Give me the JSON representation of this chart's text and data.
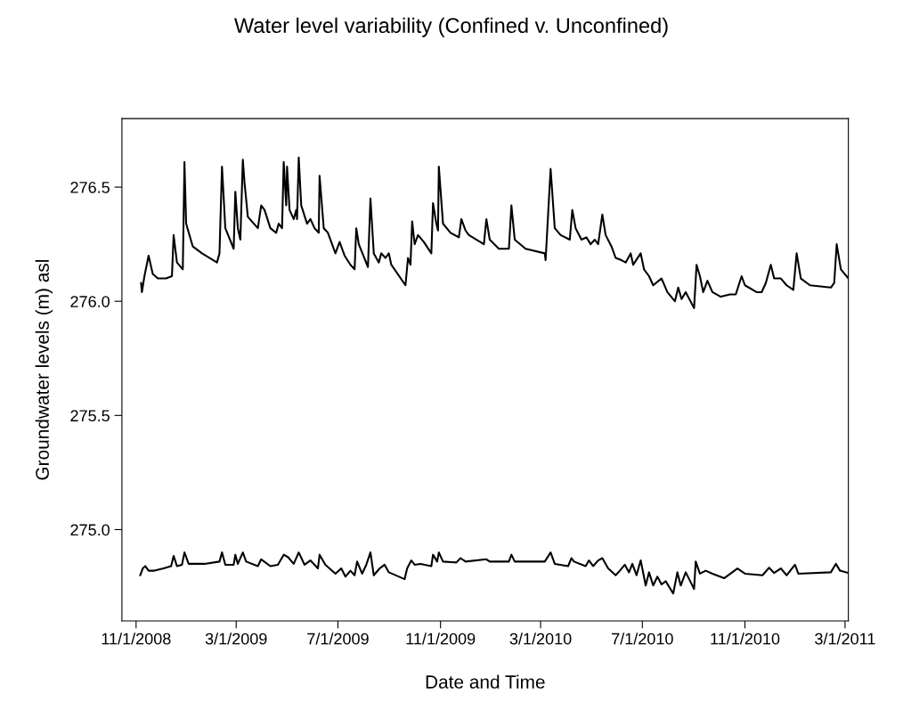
{
  "chart_data": {
    "type": "line",
    "title": "Water level variability (Confined v. Unconfined)",
    "xlabel": "Date and Time",
    "ylabel": "Groundwater levels (m) asl",
    "xlim": [
      "2008-10-15",
      "2011-03-05"
    ],
    "ylim": [
      274.6,
      276.8
    ],
    "xticks": [
      {
        "value": "2008-11-01",
        "label": "11/1/2008"
      },
      {
        "value": "2009-03-01",
        "label": "3/1/2009"
      },
      {
        "value": "2009-07-01",
        "label": "7/1/2009"
      },
      {
        "value": "2009-11-01",
        "label": "11/1/2009"
      },
      {
        "value": "2010-03-01",
        "label": "3/1/2010"
      },
      {
        "value": "2010-07-01",
        "label": "7/1/2010"
      },
      {
        "value": "2010-11-01",
        "label": "11/1/2010"
      },
      {
        "value": "2011-03-01",
        "label": "3/1/2011"
      }
    ],
    "yticks": [
      {
        "value": 275,
        "label": "275.0"
      },
      275.5,
      {
        "value": 276,
        "label": "276.0"
      },
      276.5
    ],
    "grid": false,
    "marker": "none",
    "line_style": "solid",
    "series": [
      {
        "color": "#000000",
        "x": [
          "2008-11-07",
          "2008-11-08",
          "2008-11-11",
          "2008-11-16",
          "2008-11-21",
          "2008-11-27",
          "2008-12-07",
          "2008-12-14",
          "2008-12-16",
          "2008-12-20",
          "2008-12-27",
          "2008-12-29",
          "2008-12-31",
          "2009-01-08",
          "2009-01-19",
          "2009-02-06",
          "2009-02-09",
          "2009-02-12",
          "2009-02-16",
          "2009-02-26",
          "2009-02-28",
          "2009-03-03",
          "2009-03-06",
          "2009-03-09",
          "2009-03-11",
          "2009-03-15",
          "2009-03-27",
          "2009-03-31",
          "2009-04-04",
          "2009-04-11",
          "2009-04-18",
          "2009-04-21",
          "2009-04-25",
          "2009-04-27",
          "2009-04-30",
          "2009-05-01",
          "2009-05-04",
          "2009-05-09",
          "2009-05-12",
          "2009-05-13",
          "2009-05-15",
          "2009-05-18",
          "2009-05-25",
          "2009-05-29",
          "2009-06-03",
          "2009-06-08",
          "2009-06-09",
          "2009-06-14",
          "2009-06-19",
          "2009-06-28",
          "2009-07-03",
          "2009-07-09",
          "2009-07-16",
          "2009-07-21",
          "2009-07-23",
          "2009-07-26",
          "2009-08-06",
          "2009-08-09",
          "2009-08-13",
          "2009-08-19",
          "2009-08-22",
          "2009-08-27",
          "2009-08-31",
          "2009-09-03",
          "2009-09-20",
          "2009-09-23",
          "2009-09-26",
          "2009-09-28",
          "2009-10-01",
          "2009-10-05",
          "2009-10-12",
          "2009-10-21",
          "2009-10-23",
          "2009-10-27",
          "2009-10-29",
          "2009-10-30",
          "2009-11-04",
          "2009-11-13",
          "2009-11-23",
          "2009-11-26",
          "2009-12-01",
          "2009-12-05",
          "2009-12-23",
          "2009-12-26",
          "2009-12-30",
          "2010-01-10",
          "2010-01-22",
          "2010-01-25",
          "2010-01-29",
          "2010-02-11",
          "2010-03-06",
          "2010-03-07",
          "2010-03-13",
          "2010-03-18",
          "2010-03-25",
          "2010-04-05",
          "2010-04-08",
          "2010-04-12",
          "2010-04-19",
          "2010-04-25",
          "2010-04-30",
          "2010-05-05",
          "2010-05-09",
          "2010-05-14",
          "2010-05-18",
          "2010-05-25",
          "2010-05-30",
          "2010-06-06",
          "2010-06-11",
          "2010-06-17",
          "2010-06-20",
          "2010-06-29",
          "2010-07-03",
          "2010-07-09",
          "2010-07-14",
          "2010-07-24",
          "2010-07-31",
          "2010-08-09",
          "2010-08-13",
          "2010-08-17",
          "2010-08-22",
          "2010-09-01",
          "2010-09-04",
          "2010-09-08",
          "2010-09-12",
          "2010-09-17",
          "2010-09-23",
          "2010-10-03",
          "2010-10-14",
          "2010-10-21",
          "2010-10-28",
          "2010-11-01",
          "2010-11-15",
          "2010-11-21",
          "2010-11-26",
          "2010-12-02",
          "2010-12-06",
          "2010-12-14",
          "2010-12-21",
          "2010-12-29",
          "2011-01-02",
          "2011-01-07",
          "2011-01-18",
          "2011-02-12",
          "2011-02-16",
          "2011-02-19",
          "2011-02-24",
          "2011-03-05"
        ],
        "values": [
          276.08,
          276.04,
          276.11,
          276.2,
          276.12,
          276.1,
          276.1,
          276.11,
          276.29,
          276.17,
          276.14,
          276.61,
          276.34,
          276.24,
          276.21,
          276.17,
          276.21,
          276.59,
          276.32,
          276.23,
          276.48,
          276.32,
          276.27,
          276.62,
          276.52,
          276.37,
          276.32,
          276.42,
          276.4,
          276.32,
          276.3,
          276.34,
          276.32,
          276.61,
          276.42,
          276.59,
          276.4,
          276.36,
          276.4,
          276.36,
          276.63,
          276.42,
          276.34,
          276.36,
          276.32,
          276.3,
          276.55,
          276.32,
          276.3,
          276.21,
          276.26,
          276.2,
          276.16,
          276.14,
          276.32,
          276.25,
          276.15,
          276.45,
          276.21,
          276.17,
          276.21,
          276.19,
          276.21,
          276.16,
          276.07,
          276.19,
          276.16,
          276.35,
          276.25,
          276.29,
          276.26,
          276.21,
          276.43,
          276.34,
          276.31,
          276.59,
          276.34,
          276.3,
          276.28,
          276.36,
          276.31,
          276.29,
          276.25,
          276.36,
          276.27,
          276.23,
          276.23,
          276.42,
          276.27,
          276.23,
          276.21,
          276.18,
          276.58,
          276.32,
          276.29,
          276.27,
          276.4,
          276.32,
          276.27,
          276.28,
          276.25,
          276.27,
          276.25,
          276.38,
          276.29,
          276.24,
          276.19,
          276.18,
          276.17,
          276.21,
          276.16,
          276.21,
          276.14,
          276.11,
          276.07,
          276.1,
          276.04,
          276.0,
          276.06,
          276.01,
          276.04,
          275.97,
          276.16,
          276.11,
          276.04,
          276.09,
          276.04,
          276.02,
          276.03,
          276.03,
          276.11,
          276.07,
          276.04,
          276.04,
          276.08,
          276.16,
          276.1,
          276.1,
          276.07,
          276.05,
          276.21,
          276.1,
          276.07,
          276.06,
          276.08,
          276.25,
          276.14,
          276.1
        ]
      },
      {
        "color": "#000000",
        "x": [
          "2008-11-06",
          "2008-11-09",
          "2008-11-12",
          "2008-11-16",
          "2008-11-23",
          "2008-12-04",
          "2008-12-13",
          "2008-12-16",
          "2008-12-20",
          "2008-12-26",
          "2008-12-29",
          "2009-01-03",
          "2009-01-22",
          "2009-02-09",
          "2009-02-12",
          "2009-02-16",
          "2009-02-26",
          "2009-02-28",
          "2009-03-03",
          "2009-03-09",
          "2009-03-13",
          "2009-03-27",
          "2009-03-31",
          "2009-04-11",
          "2009-04-20",
          "2009-04-27",
          "2009-05-02",
          "2009-05-09",
          "2009-05-15",
          "2009-05-22",
          "2009-05-29",
          "2009-06-07",
          "2009-06-09",
          "2009-06-16",
          "2009-06-28",
          "2009-07-05",
          "2009-07-10",
          "2009-07-16",
          "2009-07-21",
          "2009-07-24",
          "2009-07-30",
          "2009-08-04",
          "2009-08-09",
          "2009-08-13",
          "2009-08-20",
          "2009-08-26",
          "2009-08-31",
          "2009-09-19",
          "2009-09-22",
          "2009-09-27",
          "2009-10-01",
          "2009-10-08",
          "2009-10-21",
          "2009-10-23",
          "2009-10-28",
          "2009-10-30",
          "2009-11-04",
          "2009-11-20",
          "2009-11-25",
          "2009-12-01",
          "2009-12-26",
          "2009-12-30",
          "2010-01-22",
          "2010-01-25",
          "2010-01-29",
          "2010-03-06",
          "2010-03-13",
          "2010-03-18",
          "2010-04-03",
          "2010-04-07",
          "2010-04-10",
          "2010-04-24",
          "2010-04-28",
          "2010-05-03",
          "2010-05-09",
          "2010-05-14",
          "2010-05-21",
          "2010-05-30",
          "2010-06-04",
          "2010-06-10",
          "2010-06-15",
          "2010-06-19",
          "2010-06-24",
          "2010-06-29",
          "2010-07-05",
          "2010-07-09",
          "2010-07-14",
          "2010-07-19",
          "2010-07-24",
          "2010-07-29",
          "2010-08-07",
          "2010-08-12",
          "2010-08-16",
          "2010-08-22",
          "2010-09-01",
          "2010-09-03",
          "2010-09-08",
          "2010-09-15",
          "2010-09-23",
          "2010-10-07",
          "2010-10-23",
          "2010-11-01",
          "2010-11-22",
          "2010-11-30",
          "2010-12-06",
          "2010-12-14",
          "2010-12-21",
          "2010-12-31",
          "2011-01-04",
          "2011-02-12",
          "2011-02-18",
          "2011-02-23",
          "2011-03-05"
        ],
        "values": [
          274.8,
          274.83,
          274.84,
          274.82,
          274.82,
          274.83,
          274.84,
          274.885,
          274.84,
          274.846,
          274.9,
          274.85,
          274.85,
          274.86,
          274.9,
          274.846,
          274.846,
          274.89,
          274.85,
          274.9,
          274.86,
          274.84,
          274.87,
          274.84,
          274.846,
          274.89,
          274.88,
          274.85,
          274.9,
          274.846,
          274.865,
          274.83,
          274.89,
          274.846,
          274.807,
          274.83,
          274.794,
          274.82,
          274.8,
          274.86,
          274.807,
          274.846,
          274.9,
          274.8,
          274.83,
          274.846,
          274.813,
          274.783,
          274.83,
          274.865,
          274.846,
          274.85,
          274.84,
          274.89,
          274.86,
          274.9,
          274.86,
          274.856,
          274.875,
          274.86,
          274.87,
          274.86,
          274.86,
          274.89,
          274.86,
          274.86,
          274.9,
          274.85,
          274.84,
          274.875,
          274.86,
          274.84,
          274.865,
          274.84,
          274.865,
          274.875,
          274.83,
          274.8,
          274.82,
          274.846,
          274.813,
          274.85,
          274.8,
          274.865,
          274.755,
          274.813,
          274.755,
          274.794,
          274.76,
          274.774,
          274.72,
          274.813,
          274.755,
          274.813,
          274.74,
          274.86,
          274.807,
          274.82,
          274.807,
          274.787,
          274.83,
          274.807,
          274.8,
          274.833,
          274.81,
          274.83,
          274.8,
          274.846,
          274.807,
          274.813,
          274.85,
          274.82,
          274.81
        ]
      }
    ]
  }
}
